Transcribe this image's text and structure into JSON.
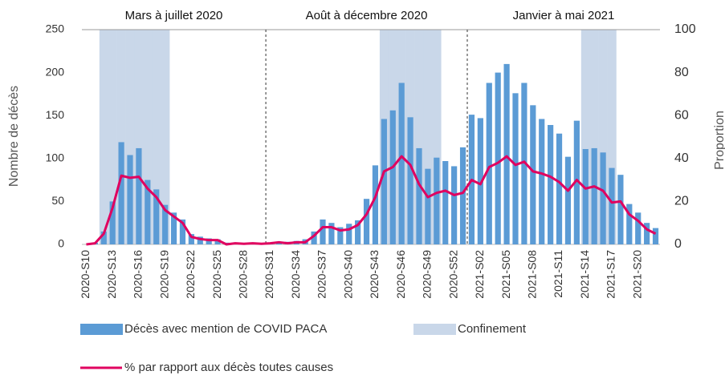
{
  "chart_data": {
    "type": "bar_line",
    "y_title": "Nombre de décès",
    "y2_title": "Proportion",
    "categories": [
      "2020-S10",
      null,
      null,
      "2020-S13",
      null,
      null,
      "2020-S16",
      null,
      null,
      "2020-S19",
      null,
      null,
      "2020-S22",
      null,
      null,
      "2020-S25",
      null,
      null,
      "2020-S28",
      null,
      null,
      "2020-S31",
      null,
      null,
      "2020-S34",
      null,
      null,
      "2020-S37",
      null,
      null,
      "2020-S40",
      null,
      null,
      "2020-S43",
      null,
      null,
      "2020-S46",
      null,
      null,
      "2020-S49",
      null,
      null,
      "2020-S52",
      null,
      null,
      "2021-S02",
      null,
      null,
      "2021-S05",
      null,
      null,
      "2021-S08",
      null,
      null,
      "2021-S11",
      null,
      null,
      "2021-S14",
      null,
      null,
      "2021-S17",
      null,
      null,
      "2021-S20",
      null,
      null
    ],
    "series": [
      {
        "name": "Décès avec mention de COVID PACA",
        "color": "#5b9bd5",
        "kind": "bar",
        "values": [
          0,
          2,
          15,
          50,
          119,
          104,
          112,
          75,
          64,
          46,
          37,
          29,
          12,
          9,
          7,
          6,
          2,
          2,
          1,
          1,
          1,
          2,
          2,
          3,
          4,
          6,
          15,
          29,
          25,
          20,
          24,
          28,
          53,
          92,
          146,
          156,
          188,
          148,
          112,
          88,
          101,
          97,
          91,
          113,
          151,
          147,
          188,
          200,
          210,
          176,
          188,
          162,
          146,
          139,
          129,
          102,
          144,
          111,
          112,
          107,
          89,
          81,
          47,
          37,
          25,
          19
        ]
      },
      {
        "name": "Confinement",
        "color": "#c9d7e9",
        "kind": "band",
        "values": [
          null,
          null,
          250,
          250,
          250,
          250,
          250,
          250,
          250,
          250,
          null,
          null,
          null,
          null,
          null,
          null,
          null,
          null,
          null,
          null,
          null,
          null,
          null,
          null,
          null,
          null,
          null,
          null,
          null,
          null,
          null,
          null,
          null,
          null,
          250,
          250,
          250,
          250,
          250,
          250,
          250,
          null,
          null,
          null,
          null,
          null,
          null,
          null,
          null,
          null,
          null,
          null,
          null,
          null,
          null,
          null,
          null,
          250,
          250,
          250,
          250,
          null,
          null,
          null,
          null,
          null
        ]
      },
      {
        "name": "% par rapport aux décès toutes causes",
        "color": "#e0005f",
        "kind": "line",
        "axis": "y2",
        "values": [
          0,
          0.5,
          5,
          17,
          32,
          31,
          31.5,
          26,
          22,
          16,
          13,
          10,
          3.5,
          2.5,
          2,
          2,
          0,
          0.5,
          0.3,
          0.5,
          0.3,
          0.5,
          1,
          0.5,
          1,
          1,
          4,
          8,
          8,
          6.5,
          7,
          9,
          14,
          22,
          34,
          36,
          41,
          37,
          28,
          22,
          24,
          25,
          23,
          24,
          30,
          28,
          36,
          38,
          41,
          37,
          38.5,
          34,
          33,
          31.5,
          29,
          25,
          30,
          26,
          27,
          25,
          19.5,
          20,
          14,
          11,
          7,
          5
        ]
      }
    ],
    "periods": [
      {
        "label": "Mars à juillet 2020",
        "start": 0,
        "end": 20
      },
      {
        "label": "Août à décembre 2020",
        "start": 21,
        "end": 43
      },
      {
        "label": "Janvier à mai 2021",
        "start": 44,
        "end": 65
      }
    ],
    "ylim": [
      0,
      250
    ],
    "yticks": [
      0,
      50,
      100,
      150,
      200,
      250
    ],
    "y2lim": [
      0,
      100
    ],
    "y2ticks": [
      0,
      20,
      40,
      60,
      80,
      100
    ]
  }
}
